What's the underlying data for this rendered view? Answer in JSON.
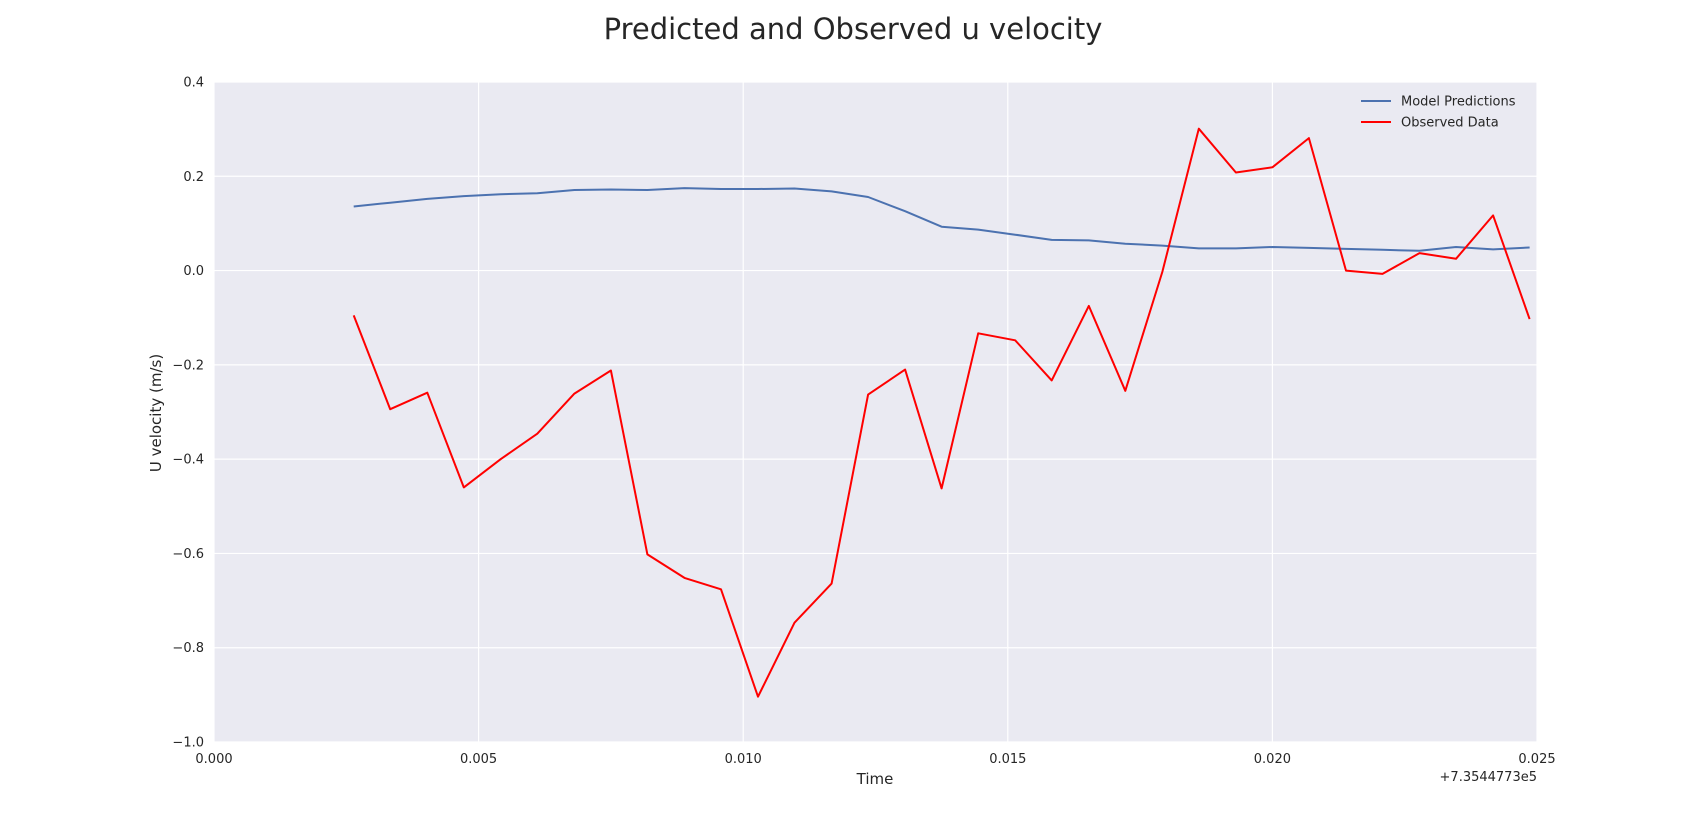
{
  "chart_data": {
    "type": "line",
    "title": "Predicted and Observed u velocity",
    "xlabel": "Time",
    "ylabel": "U velocity (m/s)",
    "x_offset_label": "+7.3544773e5",
    "xlim": [
      0.0,
      0.025
    ],
    "ylim": [
      -1.0,
      0.4
    ],
    "xticks": [
      0.0,
      0.005,
      0.01,
      0.015,
      0.02,
      0.025
    ],
    "xtick_labels": [
      "0.000",
      "0.005",
      "0.010",
      "0.015",
      "0.020",
      "0.025"
    ],
    "yticks": [
      -1.0,
      -0.8,
      -0.6,
      -0.4,
      -0.2,
      0.0,
      0.2,
      0.4
    ],
    "ytick_labels": [
      "−1.0",
      "−0.8",
      "−0.6",
      "−0.4",
      "−0.2",
      "0.0",
      "0.2",
      "0.4"
    ],
    "grid": true,
    "legend_position": "top-right",
    "series": [
      {
        "name": "Model Predictions",
        "color": "#4c72b0",
        "x": [
          0.00264,
          0.00333,
          0.00403,
          0.00472,
          0.00542,
          0.00611,
          0.00681,
          0.0075,
          0.00819,
          0.00889,
          0.00958,
          0.01028,
          0.01097,
          0.01167,
          0.01236,
          0.01306,
          0.01375,
          0.01444,
          0.01514,
          0.01583,
          0.01653,
          0.01722,
          0.01792,
          0.01861,
          0.01931,
          0.02,
          0.02069,
          0.02139,
          0.02208,
          0.02278,
          0.02347,
          0.02417,
          0.02486
        ],
        "y": [
          0.136,
          0.144,
          0.152,
          0.158,
          0.162,
          0.164,
          0.171,
          0.172,
          0.171,
          0.175,
          0.173,
          0.173,
          0.174,
          0.168,
          0.156,
          0.126,
          0.093,
          0.087,
          0.076,
          0.065,
          0.064,
          0.057,
          0.053,
          0.047,
          0.047,
          0.05,
          0.048,
          0.046,
          0.044,
          0.042,
          0.05,
          0.045,
          0.049
        ]
      },
      {
        "name": "Observed Data",
        "color": "#ff0000",
        "x": [
          0.00264,
          0.00333,
          0.00403,
          0.00472,
          0.00542,
          0.00611,
          0.00681,
          0.0075,
          0.00819,
          0.00889,
          0.00958,
          0.01028,
          0.01097,
          0.01167,
          0.01236,
          0.01306,
          0.01375,
          0.01444,
          0.01514,
          0.01583,
          0.01653,
          0.01722,
          0.01792,
          0.01861,
          0.01931,
          0.02,
          0.02069,
          0.02139,
          0.02208,
          0.02278,
          0.02347,
          0.02417,
          0.02486
        ],
        "y": [
          -0.095,
          -0.294,
          -0.259,
          -0.46,
          -0.4,
          -0.346,
          -0.261,
          -0.212,
          -0.602,
          -0.652,
          -0.676,
          -0.904,
          -0.747,
          -0.664,
          -0.263,
          -0.21,
          -0.462,
          -0.133,
          -0.148,
          -0.233,
          -0.075,
          -0.255,
          -0.003,
          0.301,
          0.208,
          0.219,
          0.281,
          0.0,
          -0.007,
          0.037,
          0.025,
          0.117,
          -0.103
        ]
      }
    ]
  }
}
